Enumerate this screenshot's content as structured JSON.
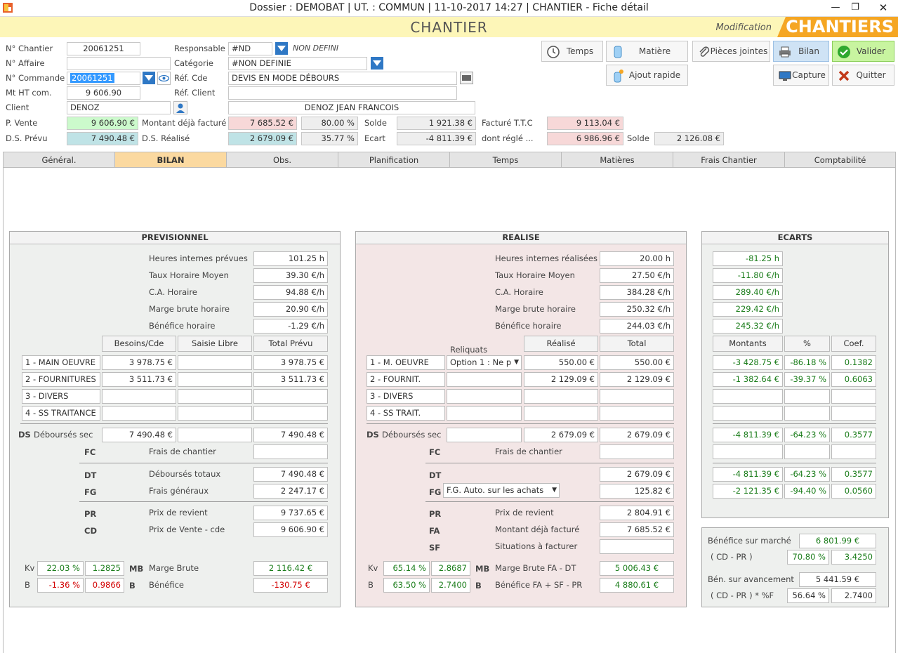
{
  "window": {
    "title": "Dossier : DEMOBAT |  UT. : COMMUN | 11-10-2017 14:27 | CHANTIER - Fiche détail"
  },
  "header": {
    "title": "CHANTIER",
    "mode": "Modification",
    "brand": "CHANTIERS"
  },
  "form": {
    "chantier_label": "N° Chantier",
    "chantier": "20061251",
    "affaire_label": "N° Affaire",
    "affaire": "",
    "commande_label": "N° Commande",
    "commande": "20061251",
    "mtht_label": "Mt HT com.",
    "mtht": "9 606.90",
    "client_label": "Client",
    "client": "DENOZ",
    "responsable_label": "Responsable",
    "responsable": "#ND",
    "responsable_name": "NON DEFINI",
    "categorie_label": "Catégorie",
    "categorie": "#NON DEFINIE",
    "refcde_label": "Réf. Cde",
    "refcde": "DEVIS EN MODE DÉBOURS",
    "refclient_label": "Réf. Client",
    "refclient": "",
    "client_name": "DENOZ JEAN FRANCOIS",
    "pvente_label": "P. Vente",
    "pvente": "9 606.90 €",
    "dsprevu_label": "D.S. Prévu",
    "dsprevu": "7 490.48 €",
    "montant_fact_label": "Montant déjà facturé",
    "montant_fact": "7 685.52 €",
    "montant_fact_pct": "80.00 %",
    "dsrealise_label": "D.S. Réalisé",
    "dsrealise": "2 679.09 €",
    "dsrealise_pct": "35.77 %",
    "solde_label": "Solde",
    "solde": "1 921.38 €",
    "ecart_label": "Ecart",
    "ecart": "-4 811.39 €",
    "facture_ttc_label": "Facturé T.T.C",
    "facture_ttc": "9 113.04 €",
    "dont_regle_label": "dont réglé ...",
    "dont_regle": "6 986.96 €",
    "solde2_label": "Solde",
    "solde2": "2 126.08 €"
  },
  "toolbar": {
    "temps": "Temps",
    "matiere": "Matière",
    "pieces": "Pièces jointes",
    "bilan": "Bilan",
    "valider": "Valider",
    "ajout": "Ajout rapide",
    "capture": "Capture",
    "quitter": "Quitter"
  },
  "tabs": [
    "Général.",
    "BILAN",
    "Obs.",
    "Planification",
    "Temps",
    "Matières",
    "Frais Chantier",
    "Comptabilité"
  ],
  "prev": {
    "title": "PREVISIONNEL",
    "r1l": "Heures internes prévues",
    "r1": "101.25 h",
    "r2l": "Taux Horaire Moyen",
    "r2": "39.30 €/h",
    "r3l": "C.A. Horaire",
    "r3": "94.88 €/h",
    "r4l": "Marge brute horaire",
    "r4": "20.90 €/h",
    "r5l": "Bénéfice horaire",
    "r5": "-1.29 €/h",
    "h1": "Besoins/Cde",
    "h2": "Saisie Libre",
    "h3": "Total Prévu",
    "l1": "1 - MAIN OEUVRE",
    "l1a": "3 978.75 €",
    "l1c": "3 978.75 €",
    "l2": "2 - FOURNITURES",
    "l2a": "3 511.73 €",
    "l2c": "3 511.73 €",
    "l3": "3 - DIVERS",
    "l4": "4 - SS TRAITANCE",
    "ds_code": "DS",
    "ds_label": "Déboursés sec",
    "ds_a": "7 490.48 €",
    "ds_c": "7 490.48 €",
    "fc_code": "FC",
    "fc_label": "Frais de chantier",
    "dt_code": "DT",
    "dt_label": "Déboursés totaux",
    "dt": "7 490.48 €",
    "fg_code": "FG",
    "fg_label": "Frais généraux",
    "fg": "2 247.17 €",
    "pr_code": "PR",
    "pr_label": "Prix de revient",
    "pr": "9 737.65 €",
    "cd_code": "CD",
    "cd_label": "Prix de Vente - cde",
    "cd": "9 606.90 €",
    "kv_label": "Kv",
    "kv1": "22.03 %",
    "kv2": "1.2825",
    "mb_code": "MB",
    "mb_label": "Marge  Brute",
    "mb": "2 116.42 €",
    "b_label": "B",
    "b1": "-1.36 %",
    "b2": "0.9866",
    "b_code": "B",
    "bn_label": "Bénéfice",
    "bn": "-130.75 €"
  },
  "real": {
    "title": "REALISE",
    "r1l": "Heures internes réalisées",
    "r1": "20.00 h",
    "r2l": "Taux Horaire Moyen",
    "r2": "27.50 €/h",
    "r3l": "C.A. Horaire",
    "r3": "384.28 €/h",
    "r4l": "Marge brute horaire",
    "r4": "250.32 €/h",
    "r5l": "Bénéfice horaire",
    "r5": "244.03 €/h",
    "h0": "Reliquats",
    "h1": "Réalisé",
    "h2": "Total",
    "l1": "1 - M. OEUVRE",
    "l1opt": "Option 1 : Ne p",
    "l1a": "550.00 €",
    "l1b": "550.00 €",
    "l2": "2 - FOURNIT.",
    "l2a": "2 129.09 €",
    "l2b": "2 129.09 €",
    "l3": "3 - DIVERS",
    "l4": "4 - SS TRAIT.",
    "ds_code": "DS",
    "ds_label": "Déboursés sec",
    "ds_a": "2 679.09 €",
    "ds_b": "2 679.09 €",
    "fc_code": "FC",
    "fc_label": "Frais de chantier",
    "dt_code": "DT",
    "dt": "2 679.09 €",
    "fg_code": "FG",
    "fg_sel": "F.G. Auto. sur les achats",
    "fg": "125.82 €",
    "pr_code": "PR",
    "pr_label": "Prix de revient",
    "pr": "2 804.91 €",
    "fa_code": "FA",
    "fa_label": "Montant déjà facturé",
    "fa": "7 685.52 €",
    "sf_code": "SF",
    "sf_label": "Situations à facturer",
    "kv_label": "Kv",
    "kv1": "65.14 %",
    "kv2": "2.8687",
    "mb_code": "MB",
    "mb_label": "Marge Brute FA - DT",
    "mb": "5 006.43 €",
    "b_label": "B",
    "b1": "63.50 %",
    "b2": "2.7400",
    "b_code": "B",
    "bn_label": "Bénéfice  FA + SF - PR",
    "bn": "4 880.61 €"
  },
  "ecarts": {
    "title": "ECARTS",
    "r1": "-81.25 h",
    "r2": "-11.80 €/h",
    "r3": "289.40 €/h",
    "r4": "229.42 €/h",
    "r5": "245.32 €/h",
    "h1": "Montants",
    "h2": "%",
    "h3": "Coef.",
    "l1a": "-3 428.75 €",
    "l1b": "-86.18 %",
    "l1c": "0.1382",
    "l2a": "-1 382.64 €",
    "l2b": "-39.37 %",
    "l2c": "0.6063",
    "dsa": "-4 811.39 €",
    "dsb": "-64.23 %",
    "dsc": "0.3577",
    "dta": "-4 811.39 €",
    "dtb": "-64.23 %",
    "dtc": "0.3577",
    "fga": "-2 121.35 €",
    "fgb": "-94.40 %",
    "fgc": "0.0560"
  },
  "benef": {
    "marche_label": "Bénéfice sur marché",
    "marche": "6 801.99 €",
    "cdpr_label": "( CD - PR  )",
    "cdpr1": "70.80 %",
    "cdpr2": "3.4250",
    "avanc_label": "Bén. sur avancement",
    "avanc": "5 441.59 €",
    "cdpr2_label": "( CD - PR  ) * %F",
    "av1": "56.64 %",
    "av2": "2.7400"
  },
  "colors": {
    "header": "#fdf6b8",
    "brand": "#f5a623",
    "tab_active": "#fbd9a0",
    "green": "#ccfacc",
    "pink": "#f7d8d8",
    "blue": "#bfe3e6"
  }
}
